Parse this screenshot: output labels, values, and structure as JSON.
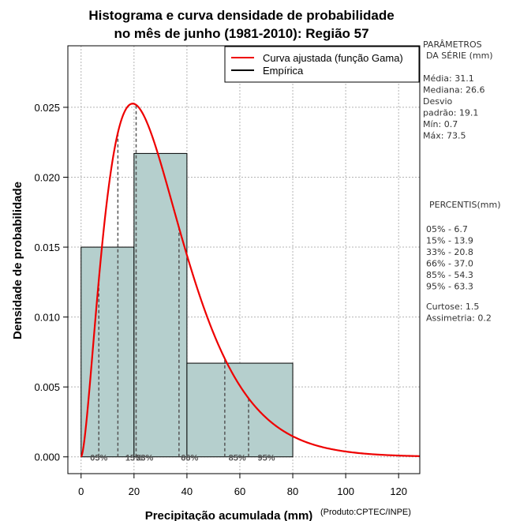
{
  "chart_data": {
    "type": "histogram",
    "title_lines": [
      "Histograma e curva densidade de probabilidade",
      "no mês de junho (1981-2010): Região 57"
    ],
    "xlabel": "Precipitação acumulada (mm)",
    "ylabel": "Densidade de probabilidade",
    "credit": "(Produto:CPTEC/INPE)",
    "xlim": [
      -5,
      128
    ],
    "ylim": [
      -0.0012,
      0.0294
    ],
    "x_ticks": [
      0,
      20,
      40,
      60,
      80,
      100,
      120
    ],
    "x_tick_labels": [
      "0",
      "20",
      "40",
      "60",
      "80",
      "100",
      "120"
    ],
    "y_ticks": [
      0,
      0.005,
      0.01,
      0.015,
      0.02,
      0.025
    ],
    "y_tick_labels": [
      "0.000",
      "0.005",
      "0.010",
      "0.015",
      "0.020",
      "0.025"
    ],
    "grid": true,
    "bins": [
      {
        "from": 0,
        "to": 20,
        "density": 0.015
      },
      {
        "from": 20,
        "to": 40,
        "density": 0.0217
      },
      {
        "from": 40,
        "to": 80,
        "density": 0.0067
      }
    ],
    "fitted_curve": {
      "name": "Curva ajustada (função Gama)",
      "color": "#ee0000",
      "shape": 2.68,
      "scale": 11.6,
      "x_range": [
        0,
        128
      ]
    },
    "legend": [
      {
        "label": "Curva ajustada (função Gama)",
        "color": "#ee0000"
      },
      {
        "label": "Empírica",
        "color": "#000000"
      }
    ],
    "legend_position": "top-right",
    "percentile_lines": [
      {
        "label": "05%",
        "x": 6.7
      },
      {
        "label": "15%",
        "x": 13.9
      },
      {
        "label": "33%",
        "x": 20.8
      },
      {
        "label": "66%",
        "x": 37.0
      },
      {
        "label": "85%",
        "x": 54.3
      },
      {
        "label": "95%",
        "x": 63.3
      }
    ],
    "percentile_markers": [
      {
        "label": "05%",
        "x": 6.7
      },
      {
        "label": "15%",
        "x": 20.0
      },
      {
        "label": "33%",
        "x": 24.0
      },
      {
        "label": "66%",
        "x": 41.0
      },
      {
        "label": "85%",
        "x": 59.0
      },
      {
        "label": "95%",
        "x": 70.0
      }
    ]
  },
  "colors": {
    "bar_fill": "#b5cfcd",
    "curve": "#ee0000",
    "grid": "#b4b4b4",
    "percentile_line": "#555555"
  },
  "sidebar": {
    "params_header": [
      "PARÂMETROS",
      "DA SÉRIE (mm)"
    ],
    "params": [
      "Média:  31.1",
      "Mediana:  26.6",
      "Desvio",
      "padrão:  19.1",
      "Mín:  0.7",
      "Máx:  73.5"
    ],
    "percentis_header": "PERCENTIS(mm)",
    "percentis": [
      "05% -   6.7",
      "15% -  13.9",
      "33% -  20.8",
      "66% -  37.0",
      "85% -  54.3",
      "95% -  63.3"
    ],
    "stats": [
      "Curtose:  1.5",
      "Assimetria:  0.2"
    ]
  }
}
